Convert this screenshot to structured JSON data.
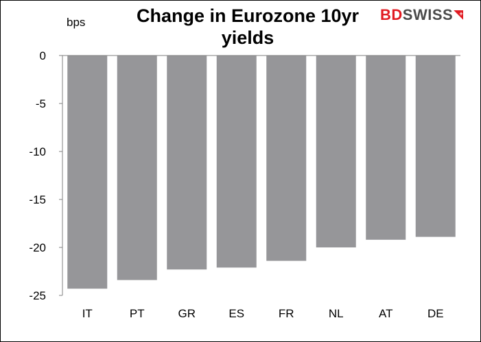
{
  "title": "Change in Eurozone 10yr yields",
  "logo": {
    "part1": "BD",
    "part2": "SWISS",
    "mark": "+"
  },
  "colors": {
    "bar": "#969699",
    "axis": "#808080",
    "logo_red": "#e11b22",
    "logo_gray": "#4a4a4a"
  },
  "chart_data": {
    "type": "bar",
    "title": "Change in Eurozone 10yr yields",
    "ylabel": "bps",
    "xlabel": "",
    "categories": [
      "IT",
      "PT",
      "GR",
      "ES",
      "FR",
      "NL",
      "AT",
      "DE"
    ],
    "values": [
      -24.3,
      -23.4,
      -22.3,
      -22.1,
      -21.4,
      -20.0,
      -19.2,
      -18.9
    ],
    "ylim": [
      -25,
      0
    ],
    "yticks": [
      0,
      -5,
      -10,
      -15,
      -20,
      -25
    ],
    "grid": false,
    "legend": "none"
  }
}
